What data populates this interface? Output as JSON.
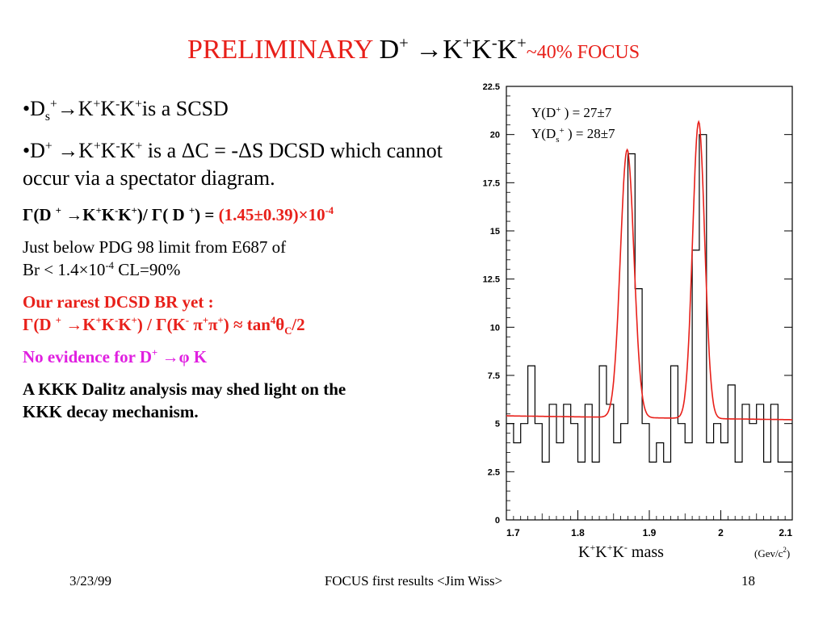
{
  "slide": {
    "title": {
      "preliminary": "PRELIMINARY",
      "decay_head": "D",
      "decay_head_sup": "+",
      "arrow": " →",
      "decay_tail": "K",
      "decay_tail_sups": [
        "+",
        "-",
        "+"
      ],
      "frac": "~40% FOCUS"
    },
    "bullets": {
      "b1": {
        "prefix": "•D",
        "ds_sub": "s",
        "ds_sup": "+",
        "arrow": "→",
        "k": "K",
        "sups": [
          "+",
          "-",
          "+"
        ],
        "text": "is a SCSD"
      },
      "b2": {
        "prefix": "•D",
        "sup": "+",
        "arrow": " →",
        "k": "K",
        "sups": [
          "+",
          "-",
          "+"
        ],
        "text": "  is a ΔC = -ΔS DCSD which cannot occur via a spectator diagram."
      },
      "ratio": {
        "gamma1": "Γ(D ",
        "sup1": "+",
        "arrow": " →",
        "k": "K",
        "ksups": [
          "+",
          "-",
          "+"
        ],
        "mid": ")/ Γ( D ",
        "sup2": "+",
        "end": ") = ",
        "value": "(1.45±0.39)×10",
        "exp": "-4"
      },
      "pdg": {
        "line1": "Just below PDG 98 limit from E687 of",
        "line2a": "Br < 1.4×10",
        "exp": "-4",
        "line2b": " CL=90%"
      },
      "rarest": {
        "line1": "Our rarest DCSD BR yet :",
        "gamma1": "Γ(D ",
        "sup1": "+",
        "arrow": " →",
        "k": "K",
        "ksups": [
          "+",
          "-",
          "+"
        ],
        "mid": ") / Γ(K",
        "kminus": "-",
        "pi1": " π",
        "pisup1": "+",
        "pi2": "π",
        "pisup2": "+",
        "end": ")   ≈ tan",
        "four": "4",
        "theta": "θ",
        "c": "C",
        "half": "/2"
      },
      "noev": {
        "text": "No evidence for D",
        "sup": "+",
        "arrow": " →",
        "phi": "φ",
        "k": " K"
      },
      "dalitz": {
        "line1": "A KKK Dalitz analysis may shed light on the",
        "line2": "KKK decay mechanism."
      }
    },
    "footer": {
      "date": "3/23/99",
      "center": "FOCUS first results <Jim Wiss>",
      "page": "18"
    }
  },
  "chart_data": {
    "type": "line",
    "xlim": [
      1.7,
      2.1
    ],
    "ylim": [
      0,
      22.5
    ],
    "xticks": [
      "1.7",
      "1.8",
      "1.9",
      "2",
      "2.1"
    ],
    "yticks": [
      "0",
      "2.5",
      "5",
      "7.5",
      "10",
      "12.5",
      "15",
      "17.5",
      "20",
      "22.5"
    ],
    "xlabel": {
      "text": "K",
      "sups": [
        "+",
        "+",
        "-"
      ],
      "mass": " mass",
      "unit": "(Gev/c",
      "unit_sup": "2",
      "unit_end": ")"
    },
    "annotations": {
      "y_dplus": {
        "label": "Y(D",
        "sup": "+",
        "value": " ) = 27±7"
      },
      "y_ds": {
        "label": "Y(D",
        "sub": "s",
        "sup": "+",
        "value": " ) = 28±7"
      }
    },
    "histogram": {
      "bin_edges": [
        1.7,
        1.71,
        1.72,
        1.73,
        1.74,
        1.75,
        1.76,
        1.77,
        1.78,
        1.79,
        1.8,
        1.81,
        1.82,
        1.83,
        1.84,
        1.85,
        1.86,
        1.87,
        1.88,
        1.89,
        1.9,
        1.91,
        1.92,
        1.93,
        1.94,
        1.95,
        1.96,
        1.97,
        1.98,
        1.99,
        2.0,
        2.01,
        2.02,
        2.03,
        2.04,
        2.05,
        2.06,
        2.07,
        2.08,
        2.09,
        2.1
      ],
      "counts": [
        5,
        4,
        5,
        8,
        5,
        3,
        6,
        4,
        6,
        5,
        3,
        6,
        3,
        8,
        6,
        4,
        5,
        19,
        12,
        5,
        3,
        4,
        3,
        8,
        5,
        4,
        14,
        20,
        4,
        5,
        4,
        7,
        3,
        6,
        5,
        6,
        3,
        6,
        3,
        3
      ]
    },
    "fit": {
      "color": "#e8201a",
      "background": {
        "at_1_7": 5.4,
        "at_2_1": 5.2
      },
      "peaks": [
        {
          "mass": 1.869,
          "amplitude": 13.9,
          "sigma": 0.0095
        },
        {
          "mass": 1.969,
          "amplitude": 15.4,
          "sigma": 0.0085
        }
      ]
    }
  }
}
